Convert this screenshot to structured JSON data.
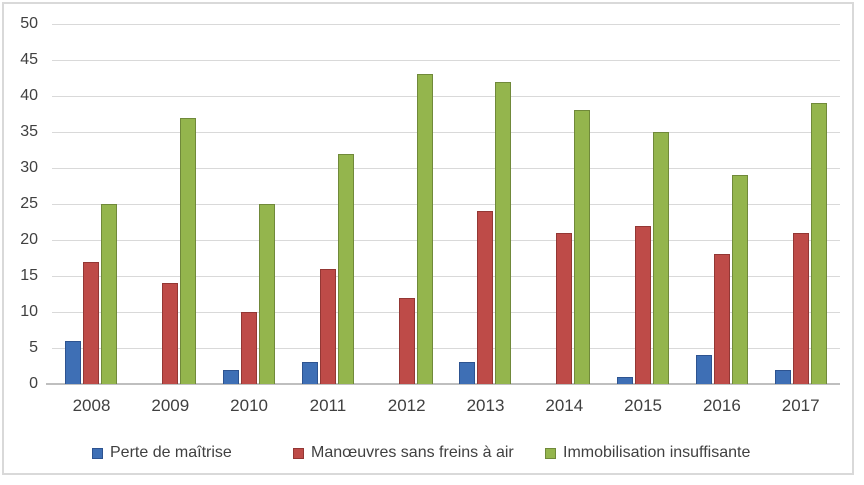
{
  "chart_data": {
    "type": "bar",
    "title": "",
    "xlabel": "",
    "ylabel": "",
    "categories": [
      "2008",
      "2009",
      "2010",
      "2011",
      "2012",
      "2013",
      "2014",
      "2015",
      "2016",
      "2017"
    ],
    "series": [
      {
        "name": "Perte de maîtrise",
        "color": "#3e6fb5",
        "border_color": "#2d5390",
        "values": [
          6,
          0,
          2,
          3,
          0,
          3,
          0,
          1,
          4,
          2
        ]
      },
      {
        "name": "Manœuvres sans freins à air",
        "color": "#be4b48",
        "border_color": "#933734",
        "values": [
          17,
          14,
          10,
          16,
          12,
          24,
          21,
          22,
          18,
          21
        ]
      },
      {
        "name": "Immobilisation insuffisante",
        "color": "#94b54d",
        "border_color": "#70893a",
        "values": [
          25,
          37,
          25,
          32,
          43,
          42,
          38,
          35,
          29,
          39
        ]
      }
    ],
    "ylim": [
      0,
      50
    ],
    "y_tick_step": 5,
    "y_tick_labels": [
      "0",
      "5",
      "10",
      "15",
      "20",
      "25",
      "30",
      "35",
      "40",
      "45",
      "50"
    ],
    "grid": true,
    "legend_position": "bottom"
  },
  "style": {
    "gridline_color": "#d9d9d9",
    "axis_line_color": "#bfbfbf",
    "text_color": "#404040",
    "frame_border_color": "#d9d9d9",
    "background": "#ffffff"
  },
  "layout_values": {
    "legend_lefts": [
      92,
      293,
      545
    ]
  }
}
